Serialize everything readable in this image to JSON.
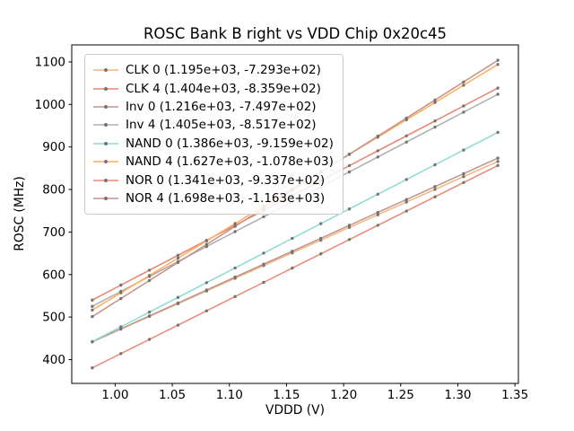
{
  "chart_data": {
    "type": "line",
    "title": "ROSC Bank B right vs VDD Chip 0x20c45",
    "xlabel": "VDDD (V)",
    "ylabel": "ROSC (MHz)",
    "xlim": [
      0.962,
      1.353
    ],
    "ylim": [
      344,
      1140
    ],
    "xticks": [
      1.0,
      1.05,
      1.1,
      1.15,
      1.2,
      1.25,
      1.3,
      1.35
    ],
    "xtick_labels": [
      "1.00",
      "1.05",
      "1.10",
      "1.15",
      "1.20",
      "1.25",
      "1.30",
      "1.35"
    ],
    "yticks": [
      400,
      500,
      600,
      700,
      800,
      900,
      1000,
      1100
    ],
    "ytick_labels": [
      "400",
      "500",
      "600",
      "700",
      "800",
      "900",
      "1000",
      "1100"
    ],
    "x": [
      0.98,
      1.005,
      1.03,
      1.055,
      1.08,
      1.105,
      1.13,
      1.155,
      1.18,
      1.205,
      1.23,
      1.255,
      1.28,
      1.305,
      1.335
    ],
    "grid": false,
    "legend_position": "upper left",
    "marker_color": "#757575",
    "series": [
      {
        "id": "clk-0",
        "name": "CLK 0 (1.195e+03, -7.293e+02)",
        "slope": 1195,
        "intercept": -729.3,
        "color": "#f4b47c"
      },
      {
        "id": "clk-4",
        "name": "CLK 4 (1.404e+03, -8.359e+02)",
        "slope": 1404,
        "intercept": -835.9,
        "color": "#e98271"
      },
      {
        "id": "inv-0",
        "name": "Inv 0 (1.216e+03, -7.497e+02)",
        "slope": 1216,
        "intercept": -749.7,
        "color": "#bd938e"
      },
      {
        "id": "inv-4",
        "name": "Inv 4 (1.405e+03, -8.517e+02)",
        "slope": 1405,
        "intercept": -851.7,
        "color": "#adadad"
      },
      {
        "id": "nand-0",
        "name": "NAND 0 (1.386e+03, -9.159e+02)",
        "slope": 1386,
        "intercept": -915.9,
        "color": "#8bdcd4"
      },
      {
        "id": "nand-4",
        "name": "NAND 4 (1.627e+03, -1.078e+03)",
        "slope": 1627,
        "intercept": -1078.0,
        "color": "#ffad5c"
      },
      {
        "id": "nor-0",
        "name": "NOR 0 (1.341e+03, -9.337e+02)",
        "slope": 1341,
        "intercept": -933.7,
        "color": "#ec8878"
      },
      {
        "id": "nor-4",
        "name": "NOR 4 (1.698e+03, -1.163e+03)",
        "slope": 1698,
        "intercept": -1163.0,
        "color": "#c78f88"
      }
    ]
  }
}
